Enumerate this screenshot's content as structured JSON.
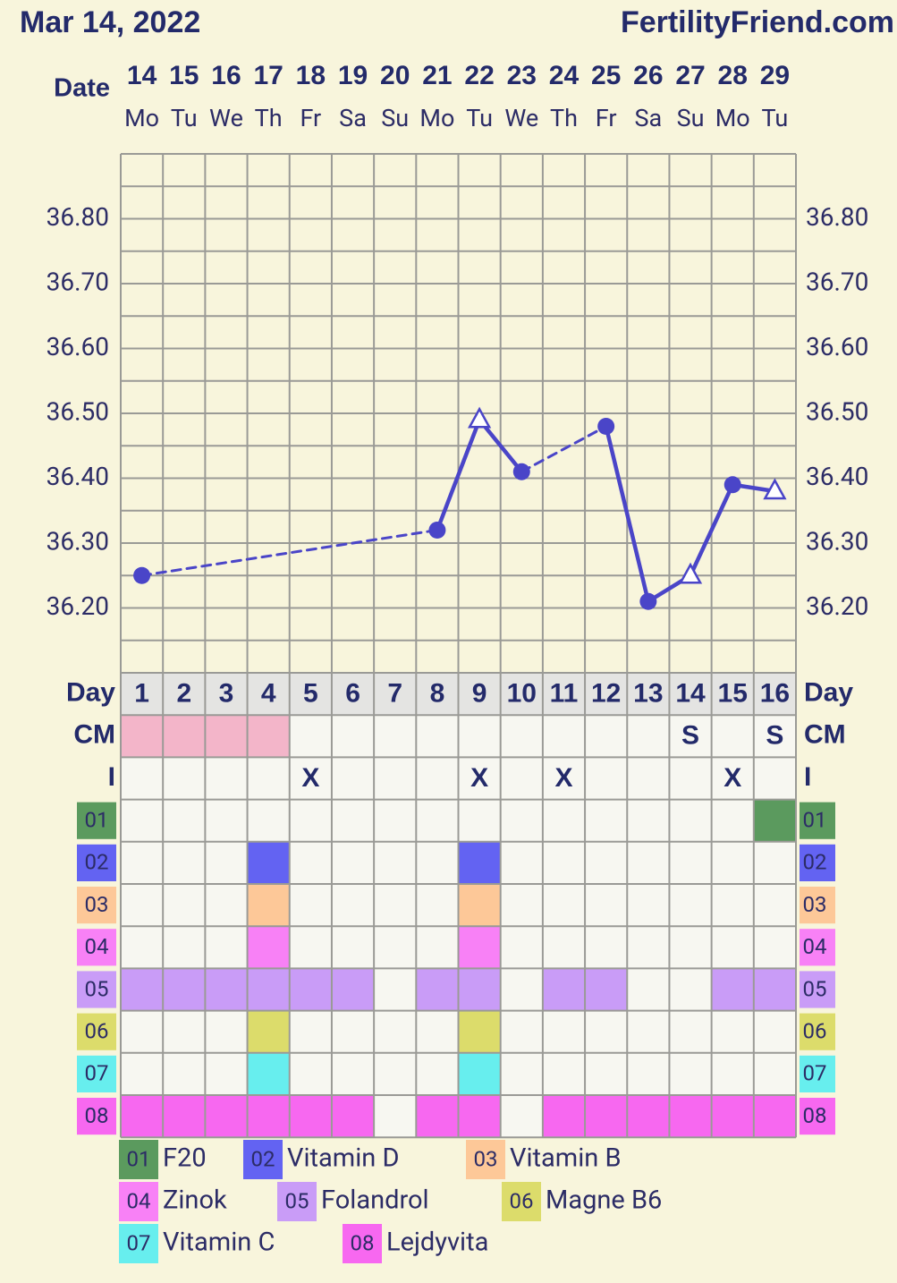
{
  "chart_data": {
    "type": "line",
    "title": "Mar 14, 2022",
    "site": "FertilityFriend.com",
    "date_label": "Date",
    "categories": [
      "14",
      "15",
      "16",
      "17",
      "18",
      "19",
      "20",
      "21",
      "22",
      "23",
      "24",
      "25",
      "26",
      "27",
      "28",
      "29"
    ],
    "weekdays": [
      "Mo",
      "Tu",
      "We",
      "Th",
      "Fr",
      "Sa",
      "Su",
      "Mo",
      "Tu",
      "We",
      "Th",
      "Fr",
      "Sa",
      "Su",
      "Mo",
      "Tu"
    ],
    "values": [
      36.25,
      null,
      null,
      null,
      null,
      null,
      null,
      36.32,
      36.49,
      36.41,
      null,
      36.48,
      36.21,
      36.25,
      36.39,
      36.38
    ],
    "point_styles": [
      "circle",
      null,
      null,
      null,
      null,
      null,
      null,
      "circle",
      "triangle",
      "circle",
      null,
      "circle",
      "circle",
      "triangle",
      "circle",
      "triangle"
    ],
    "color": "#4a45c8",
    "ylim": [
      36.1,
      36.9
    ],
    "yticks": [
      {
        "value": 36.2,
        "label": "36.20"
      },
      {
        "value": 36.3,
        "label": "36.30"
      },
      {
        "value": 36.4,
        "label": "36.40"
      },
      {
        "value": 36.5,
        "label": "36.50"
      },
      {
        "value": 36.6,
        "label": "36.60"
      },
      {
        "value": 36.7,
        "label": "36.70"
      },
      {
        "value": 36.8,
        "label": "36.80"
      }
    ],
    "minor_yticks": [
      36.15,
      36.25,
      36.35,
      36.45,
      36.55,
      36.65,
      36.75,
      36.85
    ],
    "grid": true,
    "day_label": "Day",
    "cycle_days": [
      1,
      2,
      3,
      4,
      5,
      6,
      7,
      8,
      9,
      10,
      11,
      12,
      13,
      14,
      15,
      16
    ],
    "cm_label": "CM",
    "cm": [
      null,
      null,
      null,
      null,
      null,
      null,
      null,
      null,
      null,
      null,
      null,
      null,
      null,
      "S",
      null,
      "S"
    ],
    "period": {
      "color": "#f3b5c9",
      "days": [
        1,
        2,
        3,
        4
      ]
    },
    "i_label": "I",
    "intercourse": [
      null,
      null,
      null,
      null,
      "X",
      null,
      null,
      null,
      "X",
      null,
      "X",
      null,
      null,
      null,
      "X",
      null
    ],
    "supplements": [
      {
        "code": "01",
        "name": "F20",
        "color": "#5b9a5e",
        "days": [
          16
        ]
      },
      {
        "code": "02",
        "name": "Vitamin D",
        "color": "#6363f2",
        "days": [
          4,
          9
        ]
      },
      {
        "code": "03",
        "name": "Vitamin B",
        "color": "#fdc898",
        "days": [
          4,
          9
        ]
      },
      {
        "code": "04",
        "name": "Zinok",
        "color": "#f881f6",
        "days": [
          4,
          9
        ]
      },
      {
        "code": "05",
        "name": "Folandrol",
        "color": "#c99cf7",
        "days": [
          1,
          2,
          3,
          4,
          5,
          6,
          8,
          9,
          11,
          12,
          15,
          16
        ]
      },
      {
        "code": "06",
        "name": "Magne B6",
        "color": "#dcdc6b",
        "days": [
          4,
          9
        ]
      },
      {
        "code": "07",
        "name": "Vitamin C",
        "color": "#67eeee",
        "days": [
          4,
          9
        ]
      },
      {
        "code": "08",
        "name": "Lejdyvita",
        "color": "#f768f0",
        "days": [
          1,
          2,
          3,
          4,
          5,
          6,
          8,
          9,
          11,
          12,
          13,
          14,
          15,
          16
        ]
      }
    ]
  }
}
